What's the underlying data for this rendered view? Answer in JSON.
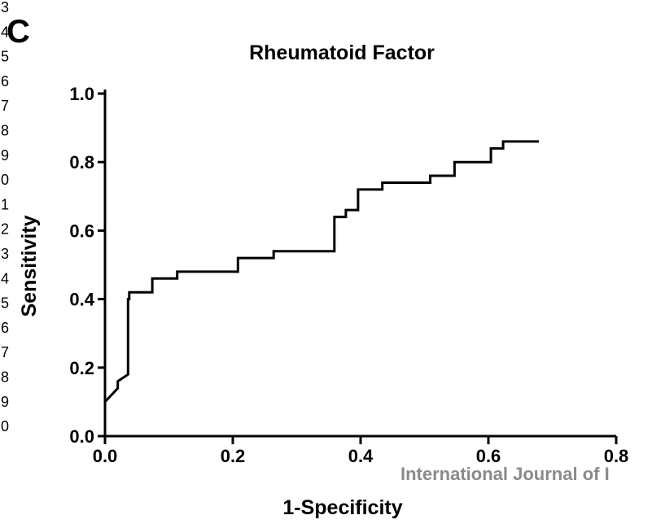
{
  "panel_label": "C",
  "margin_line_numbers": [
    "3",
    "4",
    "5",
    "6",
    "7",
    "8",
    "9",
    "0",
    "1",
    "2",
    "3",
    "4",
    "5",
    "6",
    "7",
    "8",
    "9",
    "0"
  ],
  "watermark": "International Journal of I",
  "colors": {
    "line": "#000000",
    "watermark": "#8a8a8a"
  },
  "chart_data": {
    "type": "line",
    "title": "Rheumatoid Factor",
    "xlabel": "1-Specificity",
    "ylabel": "Sensitivity",
    "xlim": [
      0.0,
      0.8
    ],
    "ylim": [
      0.0,
      1.0
    ],
    "x_ticks": [
      "0.0",
      "0.2",
      "0.4",
      "0.6",
      "0.8"
    ],
    "y_ticks": [
      "0.0",
      "0.2",
      "0.4",
      "0.6",
      "0.8",
      "1.0"
    ],
    "x_tick_values": [
      0.0,
      0.2,
      0.4,
      0.6,
      0.8
    ],
    "y_tick_values": [
      0.0,
      0.2,
      0.4,
      0.6,
      0.8,
      1.0
    ],
    "grid": false,
    "series": [
      {
        "x": [
          0.0,
          0.02,
          0.02,
          0.036,
          0.036,
          0.038,
          0.038,
          0.074,
          0.074,
          0.113,
          0.113,
          0.208,
          0.208,
          0.264,
          0.264,
          0.359,
          0.359,
          0.377,
          0.377,
          0.396,
          0.396,
          0.434,
          0.434,
          0.509,
          0.509,
          0.547,
          0.547,
          0.604,
          0.604,
          0.623,
          0.623,
          0.679
        ],
        "y": [
          0.1,
          0.14,
          0.16,
          0.18,
          0.4,
          0.4,
          0.42,
          0.42,
          0.46,
          0.46,
          0.48,
          0.48,
          0.52,
          0.52,
          0.54,
          0.54,
          0.64,
          0.64,
          0.66,
          0.66,
          0.72,
          0.72,
          0.74,
          0.74,
          0.76,
          0.76,
          0.8,
          0.8,
          0.84,
          0.84,
          0.86,
          0.86
        ]
      }
    ]
  }
}
